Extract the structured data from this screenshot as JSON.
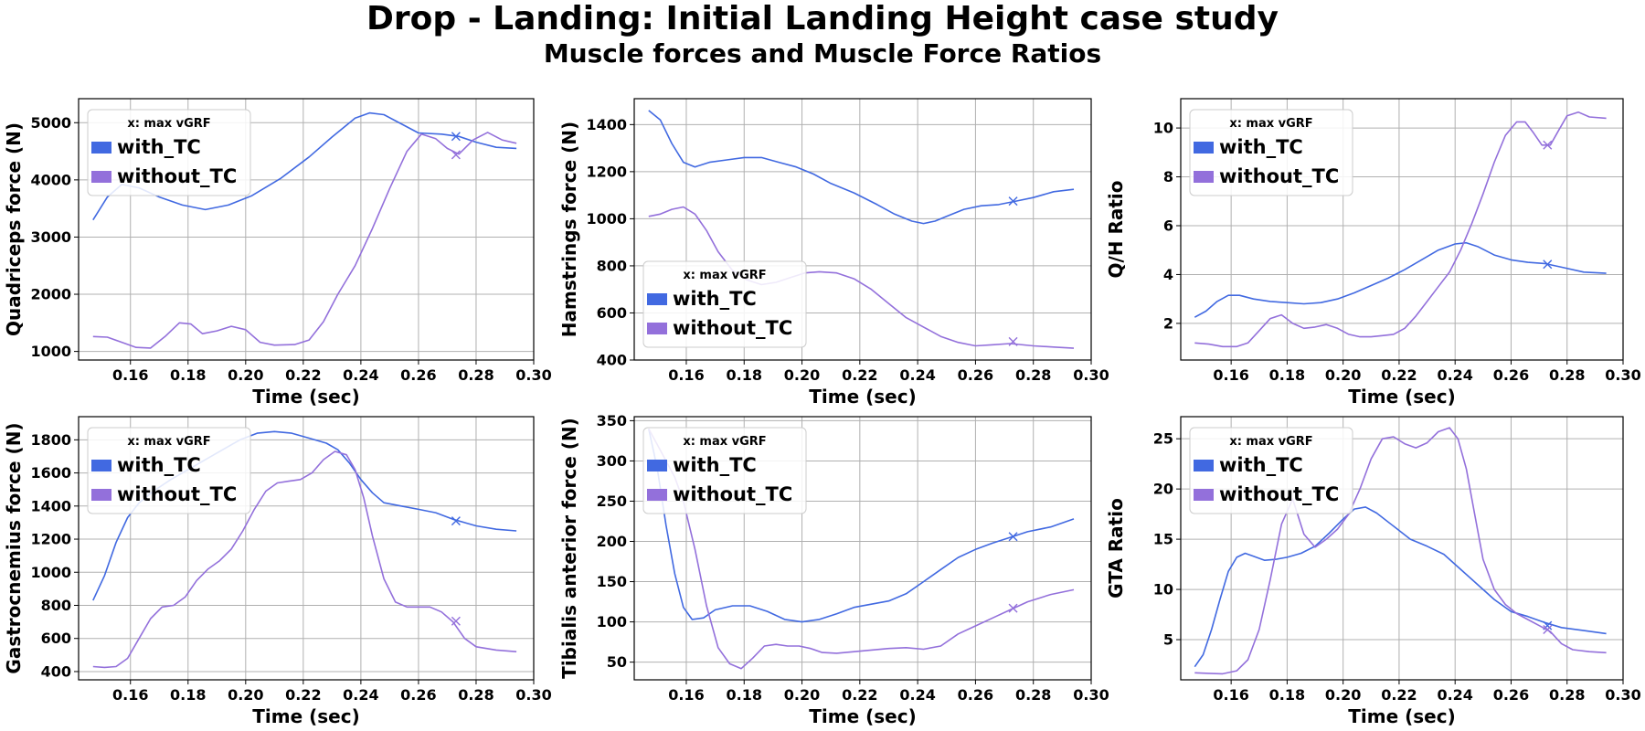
{
  "figure": {
    "title": "Drop - Landing: Initial Landing Height case study",
    "subtitle": "Muscle forces and Muscle Force Ratios"
  },
  "colors": {
    "with_TC": "#4169e1",
    "without_TC": "#9370db",
    "grid": "#b0b0b0"
  },
  "chart_data": [
    {
      "type": "line",
      "xlabel": "Time (sec)",
      "ylabel": "Quadriceps force (N)",
      "xlim": [
        0.142,
        0.3
      ],
      "ylim": [
        850,
        5420
      ],
      "xticks": [
        0.16,
        0.18,
        0.2,
        0.22,
        0.24,
        0.26,
        0.28,
        0.3
      ],
      "yticks": [
        1000,
        2000,
        3000,
        4000,
        5000
      ],
      "legend": {
        "placement": "upper-left",
        "title": "x: max vGRF"
      },
      "series": [
        {
          "name": "with_TC",
          "color": "#4169e1",
          "x": [
            0.147,
            0.152,
            0.157,
            0.163,
            0.17,
            0.178,
            0.186,
            0.194,
            0.202,
            0.212,
            0.222,
            0.23,
            0.238,
            0.243,
            0.248,
            0.254,
            0.26,
            0.268,
            0.274,
            0.28,
            0.287,
            0.294
          ],
          "y": [
            3300,
            3700,
            3920,
            3860,
            3700,
            3560,
            3480,
            3560,
            3720,
            4020,
            4400,
            4750,
            5080,
            5170,
            5140,
            4980,
            4820,
            4800,
            4760,
            4660,
            4570,
            4550
          ],
          "marker": {
            "x": 0.273,
            "y": 4760
          }
        },
        {
          "name": "without_TC",
          "color": "#9370db",
          "x": [
            0.147,
            0.152,
            0.157,
            0.162,
            0.167,
            0.172,
            0.177,
            0.181,
            0.185,
            0.19,
            0.195,
            0.2,
            0.205,
            0.21,
            0.217,
            0.222,
            0.227,
            0.232,
            0.238,
            0.244,
            0.25,
            0.256,
            0.261,
            0.266,
            0.27,
            0.274,
            0.279,
            0.284,
            0.289,
            0.294
          ],
          "y": [
            1260,
            1250,
            1160,
            1070,
            1060,
            1260,
            1500,
            1480,
            1310,
            1360,
            1440,
            1380,
            1160,
            1110,
            1120,
            1200,
            1520,
            2000,
            2500,
            3150,
            3850,
            4500,
            4800,
            4720,
            4550,
            4450,
            4700,
            4830,
            4700,
            4640
          ],
          "marker": {
            "x": 0.273,
            "y": 4440
          }
        }
      ]
    },
    {
      "type": "line",
      "xlabel": "Time (sec)",
      "ylabel": "Hamstrings force (N)",
      "xlim": [
        0.142,
        0.3
      ],
      "ylim": [
        400,
        1510
      ],
      "xticks": [
        0.16,
        0.18,
        0.2,
        0.22,
        0.24,
        0.26,
        0.28,
        0.3
      ],
      "yticks": [
        400,
        600,
        800,
        1000,
        1200,
        1400
      ],
      "legend": {
        "placement": "lower-left",
        "title": "x: max vGRF"
      },
      "series": [
        {
          "name": "with_TC",
          "color": "#4169e1",
          "x": [
            0.147,
            0.151,
            0.155,
            0.159,
            0.163,
            0.168,
            0.174,
            0.18,
            0.186,
            0.192,
            0.198,
            0.204,
            0.21,
            0.218,
            0.226,
            0.232,
            0.238,
            0.242,
            0.246,
            0.25,
            0.256,
            0.262,
            0.268,
            0.274,
            0.28,
            0.287,
            0.294
          ],
          "y": [
            1460,
            1420,
            1320,
            1240,
            1220,
            1240,
            1250,
            1260,
            1260,
            1240,
            1220,
            1190,
            1150,
            1110,
            1060,
            1020,
            990,
            980,
            990,
            1010,
            1040,
            1055,
            1060,
            1075,
            1090,
            1115,
            1125
          ],
          "marker": {
            "x": 0.273,
            "y": 1075
          }
        },
        {
          "name": "without_TC",
          "color": "#9370db",
          "x": [
            0.147,
            0.151,
            0.155,
            0.159,
            0.163,
            0.167,
            0.171,
            0.176,
            0.181,
            0.186,
            0.191,
            0.196,
            0.201,
            0.206,
            0.212,
            0.218,
            0.224,
            0.23,
            0.236,
            0.242,
            0.248,
            0.254,
            0.26,
            0.266,
            0.272,
            0.28,
            0.287,
            0.294
          ],
          "y": [
            1010,
            1020,
            1040,
            1050,
            1020,
            950,
            860,
            780,
            740,
            720,
            730,
            750,
            770,
            775,
            770,
            745,
            700,
            640,
            580,
            540,
            500,
            475,
            460,
            465,
            470,
            460,
            455,
            450
          ],
          "marker": {
            "x": 0.273,
            "y": 478
          }
        }
      ]
    },
    {
      "type": "line",
      "xlabel": "Time (sec)",
      "ylabel": "Q/H Ratio",
      "xlim": [
        0.142,
        0.3
      ],
      "ylim": [
        0.5,
        11.2
      ],
      "xticks": [
        0.16,
        0.18,
        0.2,
        0.22,
        0.24,
        0.26,
        0.28,
        0.3
      ],
      "yticks": [
        2,
        4,
        6,
        8,
        10
      ],
      "legend": {
        "placement": "upper-left",
        "title": "x: max vGRF"
      },
      "series": [
        {
          "name": "with_TC",
          "color": "#4169e1",
          "x": [
            0.147,
            0.151,
            0.155,
            0.159,
            0.163,
            0.168,
            0.174,
            0.18,
            0.186,
            0.192,
            0.198,
            0.204,
            0.21,
            0.216,
            0.222,
            0.228,
            0.234,
            0.24,
            0.244,
            0.248,
            0.254,
            0.26,
            0.266,
            0.272,
            0.278,
            0.286,
            0.294
          ],
          "y": [
            2.25,
            2.5,
            2.9,
            3.15,
            3.15,
            3.0,
            2.9,
            2.85,
            2.8,
            2.85,
            3.0,
            3.25,
            3.55,
            3.85,
            4.2,
            4.6,
            5.0,
            5.25,
            5.3,
            5.15,
            4.8,
            4.6,
            4.5,
            4.45,
            4.3,
            4.1,
            4.05
          ],
          "marker": {
            "x": 0.273,
            "y": 4.42
          }
        },
        {
          "name": "without_TC",
          "color": "#9370db",
          "x": [
            0.147,
            0.152,
            0.157,
            0.162,
            0.166,
            0.17,
            0.174,
            0.178,
            0.182,
            0.186,
            0.19,
            0.194,
            0.198,
            0.202,
            0.206,
            0.21,
            0.214,
            0.218,
            0.222,
            0.226,
            0.23,
            0.234,
            0.238,
            0.242,
            0.246,
            0.25,
            0.254,
            0.258,
            0.262,
            0.265,
            0.268,
            0.271,
            0.274,
            0.277,
            0.28,
            0.284,
            0.288,
            0.294
          ],
          "y": [
            1.2,
            1.15,
            1.05,
            1.05,
            1.2,
            1.7,
            2.2,
            2.35,
            2.0,
            1.8,
            1.85,
            1.95,
            1.8,
            1.55,
            1.45,
            1.45,
            1.5,
            1.55,
            1.8,
            2.3,
            2.9,
            3.5,
            4.1,
            5.0,
            6.1,
            7.3,
            8.6,
            9.7,
            10.25,
            10.25,
            9.8,
            9.3,
            9.3,
            9.9,
            10.5,
            10.65,
            10.45,
            10.4
          ],
          "marker": {
            "x": 0.273,
            "y": 9.3
          }
        }
      ]
    },
    {
      "type": "line",
      "xlabel": "Time (sec)",
      "ylabel": "Gastrocnemius force (N)",
      "xlim": [
        0.142,
        0.3
      ],
      "ylim": [
        350,
        1940
      ],
      "xticks": [
        0.16,
        0.18,
        0.2,
        0.22,
        0.24,
        0.26,
        0.28,
        0.3
      ],
      "yticks": [
        400,
        600,
        800,
        1000,
        1200,
        1400,
        1600,
        1800
      ],
      "legend": {
        "placement": "upper-left",
        "title": "x: max vGRF"
      },
      "series": [
        {
          "name": "with_TC",
          "color": "#4169e1",
          "x": [
            0.147,
            0.151,
            0.155,
            0.159,
            0.163,
            0.168,
            0.174,
            0.18,
            0.186,
            0.192,
            0.198,
            0.204,
            0.21,
            0.216,
            0.222,
            0.228,
            0.232,
            0.236,
            0.24,
            0.244,
            0.248,
            0.254,
            0.26,
            0.266,
            0.272,
            0.28,
            0.287,
            0.294
          ],
          "y": [
            830,
            980,
            1180,
            1330,
            1420,
            1490,
            1560,
            1620,
            1680,
            1740,
            1800,
            1840,
            1850,
            1840,
            1810,
            1780,
            1740,
            1660,
            1560,
            1480,
            1420,
            1400,
            1380,
            1360,
            1320,
            1280,
            1260,
            1250
          ],
          "marker": {
            "x": 0.273,
            "y": 1310
          }
        },
        {
          "name": "without_TC",
          "color": "#9370db",
          "x": [
            0.147,
            0.151,
            0.155,
            0.159,
            0.163,
            0.167,
            0.171,
            0.175,
            0.179,
            0.183,
            0.187,
            0.191,
            0.195,
            0.199,
            0.203,
            0.207,
            0.211,
            0.215,
            0.219,
            0.223,
            0.227,
            0.231,
            0.235,
            0.238,
            0.241,
            0.244,
            0.248,
            0.252,
            0.256,
            0.26,
            0.264,
            0.268,
            0.272,
            0.276,
            0.28,
            0.287,
            0.294
          ],
          "y": [
            430,
            425,
            430,
            480,
            600,
            720,
            790,
            800,
            850,
            950,
            1020,
            1070,
            1140,
            1250,
            1380,
            1490,
            1540,
            1550,
            1560,
            1600,
            1680,
            1730,
            1710,
            1620,
            1450,
            1220,
            960,
            820,
            790,
            790,
            790,
            760,
            700,
            600,
            550,
            530,
            520
          ],
          "marker": {
            "x": 0.273,
            "y": 705
          }
        }
      ]
    },
    {
      "type": "line",
      "xlabel": "Time (sec)",
      "ylabel": "Tibialis anterior force (N)",
      "xlim": [
        0.142,
        0.3
      ],
      "ylim": [
        28,
        355
      ],
      "xticks": [
        0.16,
        0.18,
        0.2,
        0.22,
        0.24,
        0.26,
        0.28,
        0.3
      ],
      "yticks": [
        50,
        100,
        150,
        200,
        250,
        300,
        350
      ],
      "legend": {
        "placement": "upper-left",
        "title": "x: max vGRF"
      },
      "series": [
        {
          "name": "with_TC",
          "color": "#4169e1",
          "x": [
            0.147,
            0.15,
            0.153,
            0.156,
            0.159,
            0.162,
            0.166,
            0.17,
            0.176,
            0.182,
            0.188,
            0.194,
            0.2,
            0.206,
            0.212,
            0.218,
            0.224,
            0.23,
            0.236,
            0.242,
            0.248,
            0.254,
            0.26,
            0.266,
            0.272,
            0.278,
            0.286,
            0.294
          ],
          "y": [
            340,
            290,
            220,
            160,
            118,
            103,
            105,
            115,
            120,
            120,
            113,
            103,
            100,
            103,
            110,
            118,
            122,
            126,
            135,
            150,
            165,
            180,
            190,
            198,
            205,
            212,
            218,
            228
          ],
          "marker": {
            "x": 0.273,
            "y": 206
          }
        },
        {
          "name": "without_TC",
          "color": "#9370db",
          "x": [
            0.147,
            0.15,
            0.153,
            0.156,
            0.159,
            0.163,
            0.167,
            0.171,
            0.175,
            0.179,
            0.183,
            0.187,
            0.191,
            0.195,
            0.199,
            0.203,
            0.207,
            0.212,
            0.218,
            0.224,
            0.23,
            0.236,
            0.242,
            0.248,
            0.254,
            0.26,
            0.266,
            0.272,
            0.278,
            0.286,
            0.294
          ],
          "y": [
            340,
            320,
            300,
            280,
            250,
            190,
            120,
            68,
            48,
            42,
            55,
            70,
            72,
            70,
            70,
            67,
            62,
            61,
            63,
            65,
            67,
            68,
            66,
            70,
            85,
            95,
            105,
            115,
            125,
            134,
            140
          ],
          "marker": {
            "x": 0.273,
            "y": 117
          }
        }
      ]
    },
    {
      "type": "line",
      "xlabel": "Time (sec)",
      "ylabel": "GTA Ratio",
      "xlim": [
        0.142,
        0.3
      ],
      "ylim": [
        1.0,
        27.2
      ],
      "xticks": [
        0.16,
        0.18,
        0.2,
        0.22,
        0.24,
        0.26,
        0.28,
        0.3
      ],
      "yticks": [
        5,
        10,
        15,
        20,
        25
      ],
      "legend": {
        "placement": "upper-left",
        "title": "x: max vGRF"
      },
      "series": [
        {
          "name": "with_TC",
          "color": "#4169e1",
          "x": [
            0.147,
            0.15,
            0.153,
            0.156,
            0.159,
            0.162,
            0.165,
            0.168,
            0.172,
            0.176,
            0.18,
            0.185,
            0.19,
            0.195,
            0.2,
            0.204,
            0.208,
            0.212,
            0.218,
            0.224,
            0.23,
            0.236,
            0.242,
            0.248,
            0.254,
            0.26,
            0.266,
            0.272,
            0.278,
            0.286,
            0.294
          ],
          "y": [
            2.3,
            3.5,
            6.0,
            9.0,
            11.8,
            13.2,
            13.6,
            13.3,
            12.9,
            13.0,
            13.2,
            13.6,
            14.3,
            15.6,
            17.0,
            18.0,
            18.2,
            17.6,
            16.3,
            15.0,
            14.3,
            13.5,
            12.0,
            10.5,
            9.0,
            7.8,
            7.3,
            6.7,
            6.2,
            5.9,
            5.6
          ],
          "marker": {
            "x": 0.273,
            "y": 6.4
          }
        },
        {
          "name": "without_TC",
          "color": "#9370db",
          "x": [
            0.147,
            0.152,
            0.157,
            0.162,
            0.166,
            0.17,
            0.174,
            0.178,
            0.182,
            0.186,
            0.19,
            0.194,
            0.198,
            0.202,
            0.206,
            0.21,
            0.214,
            0.218,
            0.222,
            0.226,
            0.23,
            0.234,
            0.238,
            0.241,
            0.244,
            0.247,
            0.25,
            0.254,
            0.258,
            0.262,
            0.266,
            0.27,
            0.274,
            0.278,
            0.282,
            0.288,
            0.294
          ],
          "y": [
            1.7,
            1.65,
            1.6,
            1.9,
            3.0,
            6.0,
            11.0,
            16.5,
            19.0,
            15.5,
            14.2,
            15.0,
            16.0,
            17.5,
            20.0,
            23.0,
            25.0,
            25.2,
            24.5,
            24.1,
            24.6,
            25.7,
            26.1,
            25.0,
            22.0,
            17.5,
            13.0,
            10.0,
            8.5,
            7.6,
            7.0,
            6.4,
            5.8,
            4.6,
            4.0,
            3.8,
            3.7
          ],
          "marker": {
            "x": 0.273,
            "y": 6.0
          }
        }
      ]
    }
  ]
}
